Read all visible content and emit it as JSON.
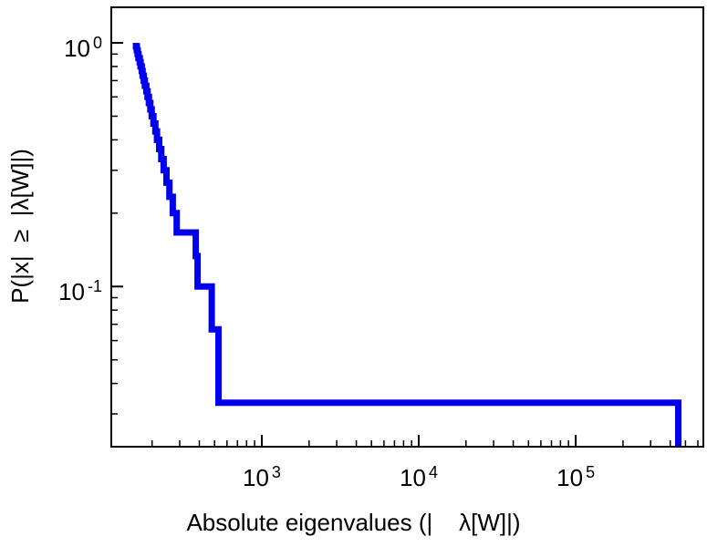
{
  "figure": {
    "background": "#ffffff",
    "frame_color": "#000000",
    "text_color": "#000000"
  },
  "chart_data": {
    "type": "line",
    "subtype": "ccdf-staircase",
    "title": "",
    "xlabel": "Absolute eigenvalues (|    λ[W]|)",
    "ylabel": "P(|x|  ≥  |λ[W]|)",
    "x_scale": "log",
    "y_scale": "log",
    "xlim": [
      110,
      650000
    ],
    "ylim": [
      0.022,
      1.4
    ],
    "grid": false,
    "legend": null,
    "tick_style": "inward",
    "line_color": "#0000ee",
    "line_width": 7,
    "x_major_ticks": [
      {
        "value": 1000,
        "label_base": "10",
        "label_exp": "3"
      },
      {
        "value": 10000,
        "label_base": "10",
        "label_exp": "4"
      },
      {
        "value": 100000,
        "label_base": "10",
        "label_exp": "5"
      }
    ],
    "y_major_ticks": [
      {
        "value": 1,
        "label_base": "10",
        "label_exp": "0"
      },
      {
        "value": 0.1,
        "label_base": "10",
        "label_exp": "-1"
      }
    ],
    "n_eigenvalues": 30,
    "y_rule": "P(|x| >= k-th largest eigenvalue) = k/30; staircase drops by 1/30 at each eigenvalue",
    "eigenvalues": [
      158,
      160,
      162,
      164,
      167,
      169,
      172,
      174,
      177,
      180,
      184,
      187,
      191,
      195,
      199,
      204,
      210,
      215,
      222,
      229,
      237,
      247,
      258,
      271,
      287,
      380,
      390,
      480,
      530,
      450000
    ],
    "flat_tail_level": 0.0333,
    "flat_tail_range": [
      530,
      450000
    ]
  }
}
